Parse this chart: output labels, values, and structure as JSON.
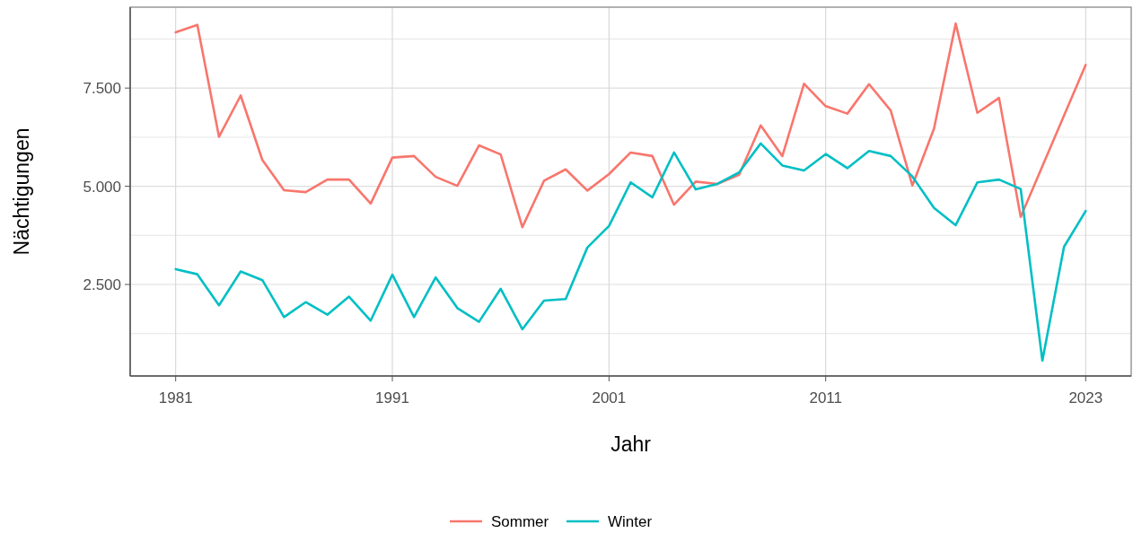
{
  "chart_data": {
    "type": "line",
    "xlabel": "Jahr",
    "ylabel": "Nächtigungen",
    "xlim": [
      1978.9,
      2025.1
    ],
    "xticks": [
      1981,
      1991,
      2001,
      2011,
      2023
    ],
    "ylim": [
      170,
      9560
    ],
    "yticks": [
      {
        "value": 1250,
        "label": null
      },
      {
        "value": 2500,
        "label": "2.500"
      },
      {
        "value": 3750,
        "label": null
      },
      {
        "value": 5000,
        "label": "5.000"
      },
      {
        "value": 6250,
        "label": null
      },
      {
        "value": 7500,
        "label": "7.500"
      },
      {
        "value": 8750,
        "label": null
      }
    ],
    "grid": true,
    "legend": "bottom",
    "marker": "none",
    "line_style": "solid",
    "series": [
      {
        "name": "Sommer",
        "color": "#f8766d",
        "x": [
          1981,
          1982,
          1983,
          1984,
          1985,
          1986,
          1987,
          1988,
          1989,
          1990,
          1991,
          1992,
          1993,
          1994,
          1995,
          1996,
          1997,
          1998,
          1999,
          2000,
          2001,
          2002,
          2003,
          2004,
          2005,
          2006,
          2007,
          2008,
          2009,
          2010,
          2011,
          2012,
          2013,
          2014,
          2015,
          2016,
          2017,
          2018,
          2019,
          2020,
          2023
        ],
        "values": [
          8920,
          9110,
          6260,
          7310,
          5670,
          4900,
          4850,
          5170,
          5170,
          4560,
          5730,
          5770,
          5240,
          5010,
          6040,
          5810,
          3960,
          5140,
          5430,
          4890,
          5310,
          5860,
          5770,
          4530,
          5120,
          5060,
          5290,
          6550,
          5770,
          7610,
          7040,
          6850,
          7600,
          6930,
          5020,
          6470,
          9140,
          6870,
          7250,
          4220,
          8090
        ]
      },
      {
        "name": "Winter",
        "color": "#00bfc4",
        "x": [
          1981,
          1982,
          1983,
          1984,
          1985,
          1986,
          1987,
          1988,
          1989,
          1990,
          1991,
          1992,
          1993,
          1994,
          1995,
          1996,
          1997,
          1998,
          1999,
          2000,
          2001,
          2002,
          2003,
          2004,
          2005,
          2006,
          2007,
          2008,
          2009,
          2010,
          2011,
          2012,
          2013,
          2014,
          2015,
          2016,
          2017,
          2018,
          2019,
          2020,
          2021,
          2022,
          2023
        ],
        "values": [
          2890,
          2760,
          1970,
          2830,
          2610,
          1670,
          2050,
          1730,
          2190,
          1580,
          2750,
          1670,
          2680,
          1900,
          1550,
          2390,
          1360,
          2090,
          2130,
          3440,
          3990,
          5100,
          4720,
          5860,
          4920,
          5060,
          5350,
          6090,
          5530,
          5400,
          5820,
          5460,
          5900,
          5770,
          5250,
          4450,
          4010,
          5100,
          5170,
          4930,
          560,
          3460,
          4370
        ]
      }
    ]
  }
}
